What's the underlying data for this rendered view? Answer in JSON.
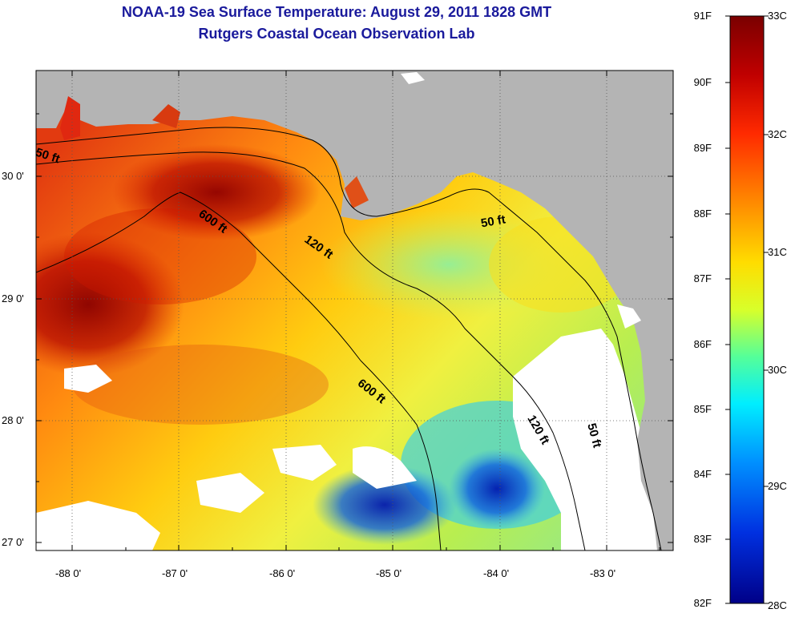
{
  "title": {
    "line1": "NOAA-19 Sea Surface Temperature:  August 29, 2011 1828 GMT",
    "line2": "Rutgers Coastal Ocean Observation Lab"
  },
  "map": {
    "lat_labels": [
      "30 0'",
      "29 0'",
      "28 0'",
      "27 0'"
    ],
    "lon_labels": [
      "-88 0'",
      "-87 0'",
      "-86 0'",
      "-85 0'",
      "-84 0'",
      "-83 0'"
    ],
    "contour_labels": [
      "50 ft",
      "600 ft",
      "120 ft",
      "50 ft",
      "600 ft",
      "120 ft",
      "50 ft"
    ],
    "colors": {
      "land": "#b4b4b4",
      "cloud": "#ffffff",
      "contour": "#000000"
    }
  },
  "colorbar": {
    "fahrenheit": [
      "91F",
      "90F",
      "89F",
      "88F",
      "87F",
      "86F",
      "85F",
      "84F",
      "83F",
      "82F"
    ],
    "celsius": [
      "33C",
      "32C",
      "31C",
      "30C",
      "29C",
      "28C"
    ]
  }
}
